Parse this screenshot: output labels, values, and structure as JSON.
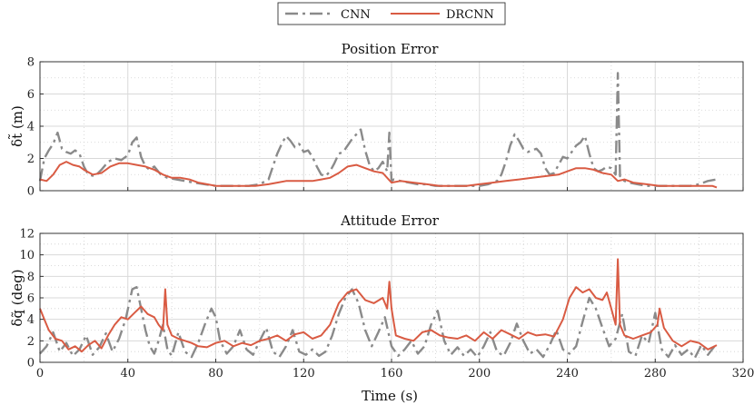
{
  "chart_data": [
    {
      "type": "line",
      "title": "Position Error",
      "xlabel": "",
      "ylabel": "δt̃ (m)",
      "xlim": [
        0,
        320
      ],
      "ylim": [
        0,
        8
      ],
      "xticks": [
        0,
        40,
        80,
        120,
        160,
        200,
        240,
        280,
        320
      ],
      "yticks": [
        0,
        2,
        4,
        6,
        8
      ],
      "legend": "top-center",
      "series": [
        {
          "name": "CNN",
          "color": "#8a8a8a",
          "x": [
            0,
            2,
            4,
            6,
            8,
            10,
            12,
            14,
            16,
            18,
            20,
            22,
            25,
            28,
            31,
            34,
            37,
            40,
            42,
            44,
            46,
            48,
            50,
            52,
            55,
            58,
            62,
            66,
            70,
            75,
            80,
            85,
            90,
            95,
            100,
            104,
            106,
            108,
            110,
            112,
            114,
            116,
            118,
            120,
            122,
            124,
            126,
            128,
            130,
            132,
            134,
            136,
            138,
            140,
            142,
            144,
            146,
            148,
            150,
            152,
            154,
            156,
            158,
            159,
            160,
            161,
            164,
            168,
            172,
            176,
            180,
            185,
            190,
            195,
            200,
            204,
            208,
            210,
            212,
            214,
            216,
            218,
            220,
            222,
            224,
            226,
            228,
            230,
            232,
            234,
            236,
            238,
            240,
            242,
            244,
            246,
            248,
            250,
            252,
            254,
            256,
            258,
            260,
            262,
            263,
            264,
            265,
            266,
            268,
            272,
            276,
            280,
            284,
            288,
            292,
            296,
            300,
            304,
            308
          ],
          "y": [
            0.6,
            2.0,
            2.5,
            2.9,
            3.6,
            2.6,
            2.4,
            2.3,
            2.5,
            2.3,
            1.5,
            1.0,
            0.9,
            1.3,
            1.8,
            2.0,
            1.9,
            2.2,
            3.0,
            3.3,
            2.1,
            1.5,
            1.3,
            1.5,
            1.0,
            0.8,
            0.7,
            0.6,
            0.5,
            0.4,
            0.3,
            0.3,
            0.3,
            0.3,
            0.4,
            0.7,
            1.5,
            2.3,
            2.9,
            3.4,
            3.1,
            2.7,
            2.9,
            2.4,
            2.5,
            2.1,
            1.5,
            1.0,
            0.9,
            1.2,
            1.7,
            2.3,
            2.4,
            2.8,
            3.2,
            3.5,
            3.8,
            2.5,
            1.6,
            1.2,
            1.4,
            1.8,
            1.2,
            3.6,
            0.6,
            0.7,
            0.6,
            0.5,
            0.4,
            0.4,
            0.3,
            0.3,
            0.3,
            0.3,
            0.3,
            0.4,
            0.6,
            1.0,
            1.8,
            2.8,
            3.5,
            3.1,
            2.6,
            2.4,
            2.5,
            2.6,
            2.3,
            1.4,
            1.0,
            1.1,
            1.6,
            2.1,
            2.0,
            2.4,
            2.8,
            3.0,
            3.4,
            2.3,
            1.4,
            1.2,
            1.3,
            1.5,
            1.4,
            1.0,
            7.3,
            0.9,
            0.7,
            0.6,
            0.5,
            0.4,
            0.3,
            0.3,
            0.3,
            0.3,
            0.3,
            0.3,
            0.4,
            0.6,
            0.7
          ]
        },
        {
          "name": "DRCNN",
          "color": "#d95b43",
          "x": [
            0,
            3,
            6,
            9,
            12,
            15,
            18,
            20,
            24,
            28,
            32,
            36,
            40,
            44,
            48,
            52,
            56,
            60,
            64,
            68,
            72,
            76,
            80,
            86,
            92,
            98,
            104,
            108,
            112,
            116,
            120,
            124,
            128,
            132,
            136,
            140,
            144,
            148,
            152,
            156,
            160,
            164,
            170,
            176,
            182,
            188,
            194,
            200,
            206,
            212,
            218,
            224,
            230,
            236,
            240,
            244,
            248,
            252,
            256,
            260,
            263,
            266,
            270,
            276,
            282,
            288,
            294,
            300,
            306,
            308
          ],
          "y": [
            0.7,
            0.6,
            1.0,
            1.6,
            1.8,
            1.6,
            1.5,
            1.3,
            1.0,
            1.1,
            1.5,
            1.7,
            1.7,
            1.6,
            1.5,
            1.3,
            1.0,
            0.8,
            0.8,
            0.7,
            0.5,
            0.4,
            0.3,
            0.3,
            0.3,
            0.3,
            0.4,
            0.5,
            0.6,
            0.6,
            0.6,
            0.6,
            0.7,
            0.8,
            1.1,
            1.5,
            1.6,
            1.4,
            1.2,
            1.1,
            0.5,
            0.6,
            0.5,
            0.4,
            0.3,
            0.3,
            0.3,
            0.4,
            0.5,
            0.6,
            0.7,
            0.8,
            0.9,
            1.0,
            1.2,
            1.4,
            1.4,
            1.3,
            1.1,
            1.0,
            0.6,
            0.7,
            0.5,
            0.4,
            0.3,
            0.3,
            0.3,
            0.3,
            0.3,
            0.2
          ]
        }
      ]
    },
    {
      "type": "line",
      "title": "Attitude Error",
      "xlabel": "Time (s)",
      "ylabel": "δq̃ (deg)",
      "xlim": [
        0,
        320
      ],
      "ylim": [
        0,
        12
      ],
      "xticks": [
        0,
        40,
        80,
        120,
        160,
        200,
        240,
        280,
        320
      ],
      "yticks": [
        0,
        2,
        4,
        6,
        8,
        10,
        12
      ],
      "series": [
        {
          "name": "CNN",
          "color": "#8a8a8a",
          "x": [
            0,
            3,
            6,
            9,
            12,
            15,
            18,
            21,
            24,
            27,
            30,
            33,
            36,
            39,
            42,
            44,
            46,
            48,
            50,
            52,
            54,
            56,
            58,
            60,
            63,
            66,
            69,
            72,
            75,
            78,
            80,
            82,
            85,
            88,
            91,
            94,
            97,
            100,
            103,
            106,
            109,
            112,
            115,
            118,
            121,
            124,
            127,
            130,
            133,
            136,
            139,
            142,
            145,
            148,
            151,
            154,
            157,
            160,
            163,
            166,
            169,
            172,
            175,
            178,
            181,
            184,
            187,
            190,
            193,
            196,
            199,
            202,
            205,
            208,
            211,
            214,
            217,
            220,
            223,
            226,
            229,
            232,
            235,
            238,
            241,
            244,
            247,
            250,
            253,
            256,
            259,
            262,
            265,
            268,
            271,
            274,
            277,
            280,
            283,
            286,
            289,
            292,
            295,
            298,
            301,
            304,
            307
          ],
          "y": [
            0.8,
            1.5,
            2.8,
            1.0,
            1.8,
            0.6,
            1.2,
            2.5,
            0.7,
            1.4,
            2.7,
            1.0,
            2.2,
            4.0,
            6.8,
            7.0,
            5.0,
            3.0,
            1.5,
            0.8,
            2.0,
            3.5,
            1.2,
            0.6,
            2.8,
            1.0,
            0.5,
            1.8,
            3.5,
            5.0,
            4.2,
            2.0,
            0.8,
            1.5,
            3.0,
            1.2,
            0.7,
            2.0,
            3.2,
            1.0,
            0.5,
            1.5,
            3.0,
            1.0,
            0.7,
            1.2,
            0.6,
            1.0,
            2.5,
            4.5,
            6.0,
            6.8,
            5.5,
            3.0,
            1.5,
            2.8,
            4.2,
            1.5,
            0.6,
            1.2,
            2.0,
            0.8,
            1.5,
            3.5,
            4.8,
            2.0,
            0.7,
            1.4,
            0.6,
            1.2,
            0.5,
            1.5,
            2.8,
            1.0,
            0.6,
            1.8,
            3.6,
            2.0,
            0.8,
            1.2,
            0.5,
            1.6,
            3.0,
            1.2,
            0.8,
            1.5,
            3.8,
            6.0,
            5.0,
            3.2,
            1.5,
            2.2,
            4.5,
            1.0,
            0.6,
            2.5,
            1.8,
            4.6,
            1.2,
            0.5,
            1.6,
            0.7,
            1.2,
            0.4,
            1.6,
            0.7,
            1.5
          ]
        },
        {
          "name": "DRCNN",
          "color": "#d95b43",
          "x": [
            0,
            2,
            4,
            7,
            10,
            13,
            16,
            19,
            22,
            25,
            28,
            31,
            34,
            37,
            40,
            43,
            46,
            49,
            52,
            54,
            56,
            57,
            58,
            60,
            63,
            66,
            69,
            72,
            76,
            80,
            84,
            88,
            92,
            96,
            100,
            104,
            108,
            112,
            116,
            120,
            124,
            128,
            132,
            136,
            140,
            144,
            148,
            152,
            156,
            158,
            159,
            160,
            162,
            166,
            170,
            174,
            178,
            182,
            186,
            190,
            194,
            198,
            202,
            206,
            210,
            214,
            218,
            222,
            226,
            230,
            234,
            238,
            241,
            244,
            247,
            250,
            253,
            256,
            258,
            260,
            262,
            263,
            264,
            266,
            270,
            274,
            278,
            281,
            282,
            284,
            288,
            292,
            296,
            300,
            304,
            308
          ],
          "y": [
            5.0,
            4.0,
            3.0,
            2.2,
            2.0,
            1.2,
            1.5,
            1.0,
            1.6,
            2.0,
            1.3,
            2.5,
            3.5,
            4.2,
            4.0,
            4.6,
            5.2,
            4.5,
            4.2,
            3.5,
            3.0,
            6.8,
            3.5,
            2.5,
            2.2,
            2.0,
            1.8,
            1.5,
            1.4,
            1.8,
            2.0,
            1.5,
            1.8,
            1.6,
            2.0,
            2.2,
            2.5,
            2.0,
            2.6,
            2.8,
            2.2,
            2.5,
            3.5,
            5.5,
            6.5,
            6.8,
            5.8,
            5.5,
            6.0,
            5.0,
            7.5,
            5.0,
            2.5,
            2.2,
            2.0,
            2.8,
            3.0,
            2.5,
            2.3,
            2.2,
            2.5,
            2.0,
            2.8,
            2.2,
            3.0,
            2.6,
            2.2,
            2.8,
            2.5,
            2.6,
            2.4,
            4.0,
            6.0,
            7.0,
            6.5,
            6.8,
            6.0,
            5.8,
            6.5,
            5.0,
            3.5,
            9.6,
            3.5,
            2.5,
            2.2,
            2.5,
            2.8,
            3.5,
            5.0,
            3.2,
            2.0,
            1.5,
            2.0,
            1.8,
            1.2,
            1.6
          ]
        }
      ]
    }
  ]
}
